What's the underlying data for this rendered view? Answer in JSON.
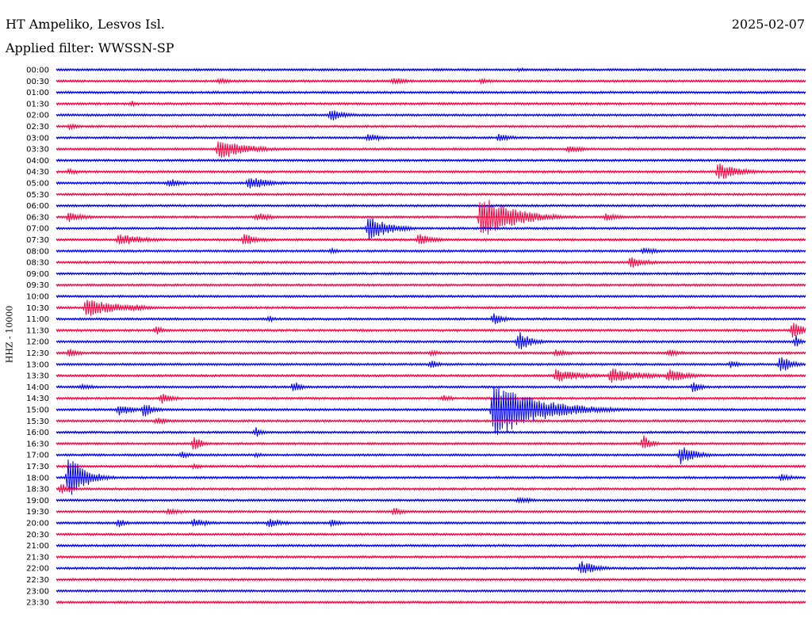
{
  "header": {
    "station": "HT Ampeliko, Lesvos Isl.",
    "date": "2025-02-07",
    "filter": "Applied filter: WWSSN-SP"
  },
  "chart_data": {
    "type": "line",
    "title": "HT Ampeliko, Lesvos Isl.",
    "subtitle": "Applied filter: WWSSN-SP",
    "ylabel": "HHZ - 10000",
    "xlabel": "",
    "row_labels": [
      "00:00",
      "00:30",
      "01:00",
      "01:30",
      "02:00",
      "02:30",
      "03:00",
      "03:30",
      "04:00",
      "04:30",
      "05:00",
      "05:30",
      "06:00",
      "06:30",
      "07:00",
      "07:30",
      "08:00",
      "08:30",
      "09:00",
      "09:30",
      "10:00",
      "10:30",
      "11:00",
      "11:30",
      "12:00",
      "12:30",
      "13:00",
      "13:30",
      "14:00",
      "14:30",
      "15:00",
      "15:30",
      "16:00",
      "16:30",
      "17:00",
      "17:30",
      "18:00",
      "18:30",
      "19:00",
      "19:30",
      "20:00",
      "20:30",
      "21:00",
      "21:30",
      "22:00",
      "22:30",
      "23:00",
      "23:30"
    ],
    "row_minutes": 30,
    "series_colors": {
      "even": "#0000ff",
      "odd": "#ff0040"
    },
    "events": [
      {
        "row": 0,
        "minute": 18.5,
        "amp": 3,
        "dur": 1.2
      },
      {
        "row": 1,
        "minute": 6.5,
        "amp": 4,
        "dur": 1.5
      },
      {
        "row": 1,
        "minute": 13.5,
        "amp": 5,
        "dur": 1.5
      },
      {
        "row": 1,
        "minute": 17.0,
        "amp": 4,
        "dur": 1.2
      },
      {
        "row": 3,
        "minute": 3.0,
        "amp": 4,
        "dur": 0.8
      },
      {
        "row": 4,
        "minute": 11.0,
        "amp": 8,
        "dur": 1.4
      },
      {
        "row": 5,
        "minute": 0.5,
        "amp": 4,
        "dur": 1.0
      },
      {
        "row": 6,
        "minute": 12.5,
        "amp": 6,
        "dur": 1.5
      },
      {
        "row": 6,
        "minute": 17.7,
        "amp": 6,
        "dur": 1.3
      },
      {
        "row": 7,
        "minute": 6.5,
        "amp": 14,
        "dur": 2.5
      },
      {
        "row": 7,
        "minute": 20.5,
        "amp": 5,
        "dur": 1.5
      },
      {
        "row": 9,
        "minute": 0.5,
        "amp": 4,
        "dur": 1.2
      },
      {
        "row": 9,
        "minute": 26.5,
        "amp": 12,
        "dur": 2.0
      },
      {
        "row": 10,
        "minute": 4.5,
        "amp": 6,
        "dur": 1.5
      },
      {
        "row": 10,
        "minute": 7.7,
        "amp": 9,
        "dur": 2.0
      },
      {
        "row": 13,
        "minute": 0.5,
        "amp": 7,
        "dur": 1.5
      },
      {
        "row": 13,
        "minute": 8.0,
        "amp": 6,
        "dur": 1.5
      },
      {
        "row": 13,
        "minute": 17.0,
        "amp": 28,
        "dur": 3.0
      },
      {
        "row": 13,
        "minute": 22.0,
        "amp": 5,
        "dur": 1.5
      },
      {
        "row": 14,
        "minute": 12.5,
        "amp": 16,
        "dur": 2.0
      },
      {
        "row": 15,
        "minute": 2.5,
        "amp": 8,
        "dur": 2.5
      },
      {
        "row": 15,
        "minute": 7.5,
        "amp": 8,
        "dur": 1.5
      },
      {
        "row": 15,
        "minute": 14.5,
        "amp": 8,
        "dur": 1.5
      },
      {
        "row": 16,
        "minute": 11.0,
        "amp": 4,
        "dur": 1.0
      },
      {
        "row": 16,
        "minute": 23.5,
        "amp": 5,
        "dur": 1.5
      },
      {
        "row": 17,
        "minute": 23.0,
        "amp": 8,
        "dur": 1.5
      },
      {
        "row": 21,
        "minute": 1.2,
        "amp": 12,
        "dur": 3.0
      },
      {
        "row": 21,
        "minute": 3.0,
        "amp": 5,
        "dur": 2.0
      },
      {
        "row": 22,
        "minute": 8.5,
        "amp": 5,
        "dur": 0.6
      },
      {
        "row": 22,
        "minute": 17.5,
        "amp": 8,
        "dur": 1.0
      },
      {
        "row": 23,
        "minute": 4.0,
        "amp": 7,
        "dur": 0.6
      },
      {
        "row": 23,
        "minute": 29.5,
        "amp": 12,
        "dur": 1.0
      },
      {
        "row": 24,
        "minute": 18.5,
        "amp": 14,
        "dur": 1.2
      },
      {
        "row": 24,
        "minute": 29.6,
        "amp": 9,
        "dur": 0.5
      },
      {
        "row": 25,
        "minute": 0.5,
        "amp": 6,
        "dur": 1.2
      },
      {
        "row": 25,
        "minute": 15.0,
        "amp": 4,
        "dur": 1.0
      },
      {
        "row": 25,
        "minute": 20.0,
        "amp": 5,
        "dur": 1.5
      },
      {
        "row": 25,
        "minute": 24.5,
        "amp": 5,
        "dur": 1.5
      },
      {
        "row": 26,
        "minute": 15.0,
        "amp": 6,
        "dur": 0.8
      },
      {
        "row": 26,
        "minute": 27.0,
        "amp": 5,
        "dur": 1.0
      },
      {
        "row": 26,
        "minute": 29.0,
        "amp": 12,
        "dur": 1.0
      },
      {
        "row": 27,
        "minute": 20.0,
        "amp": 9,
        "dur": 2.5
      },
      {
        "row": 27,
        "minute": 22.2,
        "amp": 10,
        "dur": 3.0
      },
      {
        "row": 27,
        "minute": 24.5,
        "amp": 9,
        "dur": 2.0
      },
      {
        "row": 28,
        "minute": 1.0,
        "amp": 4,
        "dur": 1.5
      },
      {
        "row": 28,
        "minute": 9.5,
        "amp": 8,
        "dur": 0.8
      },
      {
        "row": 28,
        "minute": 25.5,
        "amp": 8,
        "dur": 0.8
      },
      {
        "row": 29,
        "minute": 4.2,
        "amp": 7,
        "dur": 1.2
      },
      {
        "row": 29,
        "minute": 15.5,
        "amp": 5,
        "dur": 1.0
      },
      {
        "row": 30,
        "minute": 2.5,
        "amp": 8,
        "dur": 1.5
      },
      {
        "row": 30,
        "minute": 3.5,
        "amp": 10,
        "dur": 1.0
      },
      {
        "row": 30,
        "minute": 17.5,
        "amp": 38,
        "dur": 4.0
      },
      {
        "row": 31,
        "minute": 4.0,
        "amp": 5,
        "dur": 1.5
      },
      {
        "row": 32,
        "minute": 8.0,
        "amp": 7,
        "dur": 0.6
      },
      {
        "row": 33,
        "minute": 5.5,
        "amp": 10,
        "dur": 0.8
      },
      {
        "row": 33,
        "minute": 23.5,
        "amp": 11,
        "dur": 0.8
      },
      {
        "row": 34,
        "minute": 5.0,
        "amp": 5,
        "dur": 1.0
      },
      {
        "row": 34,
        "minute": 8.0,
        "amp": 4,
        "dur": 0.8
      },
      {
        "row": 34,
        "minute": 25.0,
        "amp": 12,
        "dur": 1.5
      },
      {
        "row": 35,
        "minute": 5.5,
        "amp": 4,
        "dur": 1.0
      },
      {
        "row": 36,
        "minute": 0.5,
        "amp": 30,
        "dur": 1.5
      },
      {
        "row": 36,
        "minute": 29.0,
        "amp": 5,
        "dur": 1.5
      },
      {
        "row": 37,
        "minute": 0.2,
        "amp": 8,
        "dur": 0.8
      },
      {
        "row": 38,
        "minute": 18.5,
        "amp": 5,
        "dur": 1.5
      },
      {
        "row": 39,
        "minute": 4.5,
        "amp": 5,
        "dur": 1.5
      },
      {
        "row": 39,
        "minute": 13.5,
        "amp": 6,
        "dur": 1.0
      },
      {
        "row": 40,
        "minute": 2.5,
        "amp": 6,
        "dur": 0.8
      },
      {
        "row": 40,
        "minute": 5.5,
        "amp": 6,
        "dur": 1.5
      },
      {
        "row": 40,
        "minute": 8.5,
        "amp": 6,
        "dur": 1.5
      },
      {
        "row": 40,
        "minute": 11.0,
        "amp": 5,
        "dur": 1.0
      },
      {
        "row": 44,
        "minute": 21.0,
        "amp": 10,
        "dur": 1.5
      }
    ]
  }
}
